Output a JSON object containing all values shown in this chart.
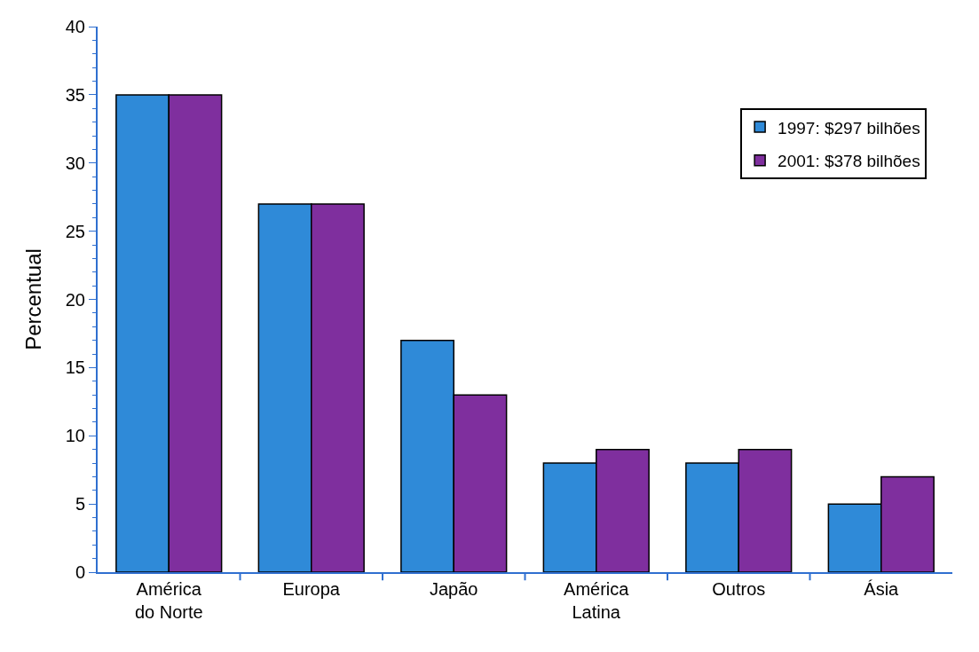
{
  "chart_data": {
    "type": "bar",
    "ylabel": "Percentual",
    "categories": [
      "América\ndo Norte",
      "Europa",
      "Japão",
      "América\nLatina",
      "Outros",
      "Ásia"
    ],
    "series": [
      {
        "name": "1997: $297 bilhões",
        "color": "#2f8ad8",
        "values": [
          35,
          27,
          17,
          8,
          8,
          5
        ]
      },
      {
        "name": "2001: $378 bilhões",
        "color": "#7f2f9e",
        "values": [
          35,
          27,
          13,
          9,
          9,
          7
        ]
      }
    ],
    "ylim": [
      0,
      40
    ],
    "yticks": [
      0,
      5,
      10,
      15,
      20,
      25,
      30,
      35,
      40
    ],
    "legend": "top right"
  }
}
